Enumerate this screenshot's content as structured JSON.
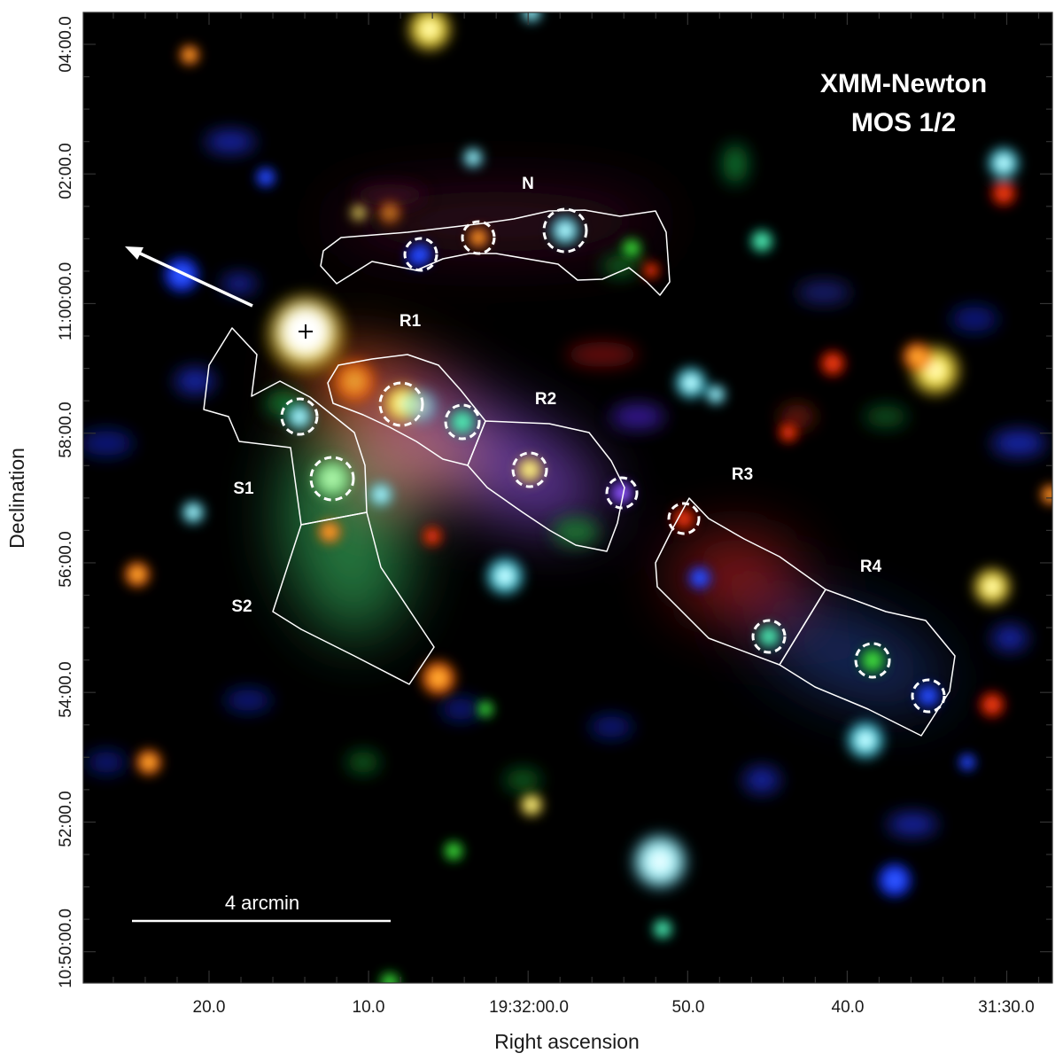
{
  "title": {
    "line1": "XMM-Newton",
    "line2": "MOS 1/2"
  },
  "axes": {
    "xlabel": "Right ascension",
    "ylabel": "Declination",
    "x_ticks": [
      "20.0",
      "10.0",
      "19:32:00.0",
      "50.0",
      "40.0",
      "31:30.0"
    ],
    "y_ticks": [
      "04:00.0",
      "02:00.0",
      "11:00:00.0",
      "58:00.0",
      "56:00.0",
      "54:00.0",
      "52:00.0",
      "10:50:00.0"
    ]
  },
  "regions": {
    "n": "N",
    "r1": "R1",
    "r2": "R2",
    "r3": "R3",
    "r4": "R4",
    "s1": "S1",
    "s2": "S2"
  },
  "scale_bar": {
    "label": "4 arcmin"
  },
  "colors": {
    "sky_background": "#000000",
    "region_outline": "#ffffff",
    "axis_frame": "#333333"
  }
}
